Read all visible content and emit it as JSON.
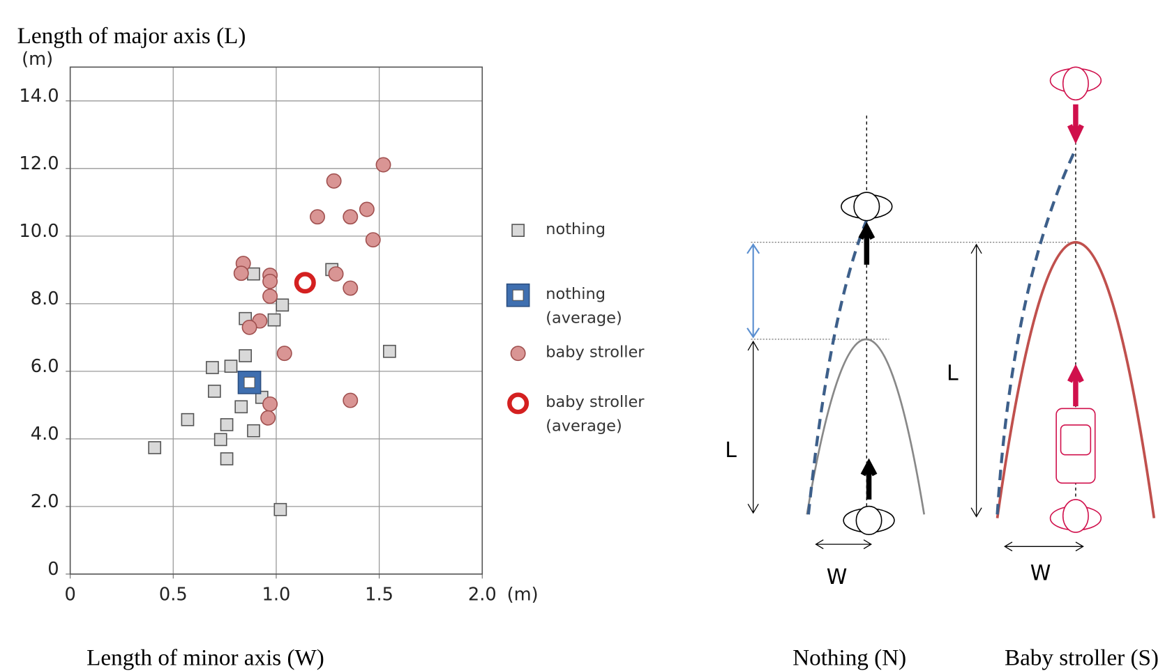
{
  "chart_data": {
    "type": "scatter",
    "title": "Length of major axis (L)",
    "x_label": "Length of minor axis (W)",
    "y_unit": "(m)",
    "x_unit": "(m)",
    "xlim": [
      0,
      2
    ],
    "ylim": [
      0,
      15
    ],
    "xticks": [
      0,
      0.5,
      {
        "value": 1,
        "label": "1.0"
      },
      1.5,
      {
        "value": 2,
        "label": "2.0"
      }
    ],
    "yticks": [
      0,
      {
        "value": 2,
        "label": "2.0"
      },
      {
        "value": 4,
        "label": "4.0"
      },
      {
        "value": 6,
        "label": "6.0"
      },
      {
        "value": 8,
        "label": "8.0"
      },
      {
        "value": 10,
        "label": "10.0"
      },
      {
        "value": 12,
        "label": "12.0"
      },
      {
        "value": 14,
        "label": "14.0"
      }
    ],
    "grid": true,
    "series": [
      {
        "name": "nothing",
        "color": "#d9d9d9",
        "marker": "square",
        "x": [
          0.41,
          0.57,
          0.69,
          0.7,
          0.78,
          0.73,
          0.76,
          0.76,
          0.83,
          0.85,
          0.85,
          0.89,
          0.89,
          0.93,
          0.99,
          1.03,
          1.02,
          1.27,
          1.55
        ],
        "values": [
          3.74,
          4.57,
          6.11,
          5.41,
          6.15,
          3.98,
          4.42,
          3.41,
          4.95,
          6.46,
          7.56,
          8.88,
          4.24,
          5.23,
          7.52,
          7.96,
          1.91,
          9.01,
          6.59
        ]
      },
      {
        "name": "nothing (average)",
        "color": "#3f6fb0",
        "marker": "framed-square",
        "x": [
          0.87
        ],
        "values": [
          5.67
        ]
      },
      {
        "name": "baby stroller",
        "color": "#d99594",
        "marker": "circle",
        "x": [
          1.52,
          1.28,
          1.44,
          1.2,
          1.36,
          1.47,
          0.84,
          0.83,
          0.97,
          0.97,
          1.29,
          1.36,
          0.97,
          0.92,
          0.87,
          1.04,
          0.97,
          0.96,
          1.36
        ],
        "values": [
          12.11,
          11.63,
          10.79,
          10.57,
          10.57,
          9.89,
          9.19,
          8.9,
          8.84,
          8.66,
          8.88,
          8.46,
          8.22,
          7.49,
          7.3,
          6.53,
          5.03,
          4.62,
          5.14
        ]
      },
      {
        "name": "baby stroller (average)",
        "color": "#d42020",
        "marker": "ring",
        "x": [
          1.14
        ],
        "values": [
          8.62
        ]
      }
    ]
  },
  "diagram": {
    "nothing": {
      "label": "Nothing (N)",
      "length": "L",
      "width": "W"
    },
    "stroller": {
      "label": "Baby stroller (S)",
      "length": "L",
      "width": "W"
    }
  }
}
